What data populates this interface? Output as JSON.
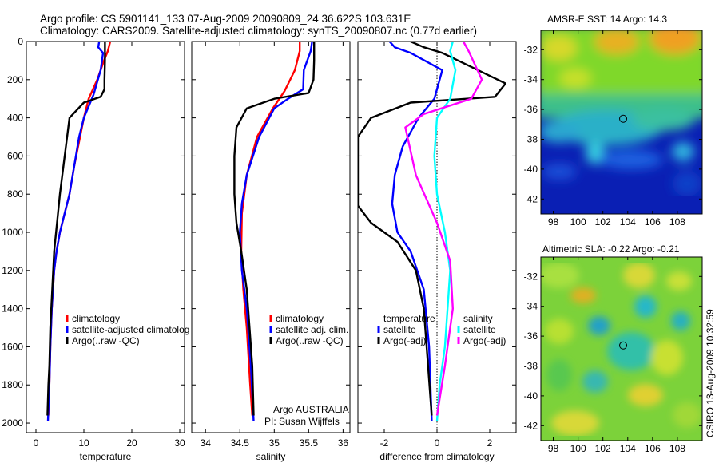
{
  "header": {
    "line1": "Argo profile: CS 5901141_133 07-Aug-2009 20090809_24 36.622S 103.631E",
    "line2": "Climatology: CARS2009. Satellite-adjusted climatology: synTS_20090807.nc (0.77d earlier)"
  },
  "side_text": "CSIRO 13-Aug-2009 10:32:59",
  "colors": {
    "climatology": "#ff0000",
    "satellite": "#0000ff",
    "argo": "#000000",
    "satellite_salinity": "#00ffff",
    "argo_salinity": "#ff00ff"
  },
  "chart_data": [
    {
      "id": "temperature",
      "type": "line",
      "xlabel": "temperature",
      "ylabel": "",
      "xlim": [
        -2,
        31
      ],
      "ylim": [
        2050,
        0
      ],
      "xticks": [
        0,
        10,
        20,
        30
      ],
      "yticks": [
        0,
        200,
        400,
        600,
        800,
        1000,
        1200,
        1400,
        1600,
        1800,
        2000
      ],
      "legend_position": "lower-center",
      "legend": [
        "climatology",
        "satellite-adjusted climatolog",
        "Argo(..raw -QC)"
      ],
      "series": [
        {
          "name": "climatology",
          "color": "#ff0000",
          "x": [
            15.5,
            15.0,
            14.2,
            12.8,
            11.0,
            10.0,
            9.2,
            8.0,
            7.0,
            6.0,
            5.0,
            4.3,
            3.8,
            3.3,
            3.0,
            2.8,
            2.6
          ],
          "y": [
            0,
            50,
            100,
            200,
            300,
            400,
            500,
            650,
            800,
            900,
            1000,
            1100,
            1200,
            1400,
            1600,
            1800,
            1960
          ]
        },
        {
          "name": "satellite-adjusted climatolog",
          "color": "#0000ff",
          "x": [
            13.2,
            13.0,
            14.0,
            13.5,
            12.0,
            10.0,
            9.0,
            8.0,
            7.0,
            6.0,
            5.0,
            4.3,
            3.8,
            3.3,
            3.0,
            2.8,
            2.5
          ],
          "y": [
            0,
            30,
            60,
            150,
            280,
            400,
            500,
            650,
            800,
            900,
            1000,
            1100,
            1200,
            1400,
            1600,
            1800,
            1990
          ]
        },
        {
          "name": "Argo(..raw -QC)",
          "color": "#000000",
          "x": [
            14.4,
            14.4,
            14.3,
            14.3,
            13.5,
            10.0,
            7.0,
            6.0,
            5.0,
            4.4,
            3.8,
            3.4,
            3.0,
            2.8,
            2.6,
            2.4
          ],
          "y": [
            0,
            100,
            200,
            250,
            290,
            320,
            400,
            600,
            800,
            950,
            1100,
            1300,
            1500,
            1700,
            1800,
            1960
          ]
        }
      ]
    },
    {
      "id": "salinity",
      "type": "line",
      "xlabel": "salinity",
      "ylabel": "",
      "xlim": [
        33.8,
        36.1
      ],
      "ylim": [
        2050,
        0
      ],
      "xticks": [
        34,
        34.5,
        35,
        35.5,
        36
      ],
      "xtick_labels": [
        "34",
        "34.5",
        "35",
        "35.5",
        "36"
      ],
      "legend_position": "lower-center",
      "legend": [
        "climatology",
        "satellite adj. clim.",
        "Argo(..raw -QC)"
      ],
      "series": [
        {
          "name": "climatology",
          "color": "#ff0000",
          "x": [
            35.37,
            35.37,
            35.3,
            35.15,
            34.98,
            34.75,
            34.6,
            34.53,
            34.52,
            34.55,
            34.6,
            34.65,
            34.68
          ],
          "y": [
            0,
            50,
            150,
            260,
            350,
            500,
            700,
            900,
            1100,
            1300,
            1500,
            1800,
            1960
          ]
        },
        {
          "name": "satellite adj. clim.",
          "color": "#0000ff",
          "x": [
            35.55,
            35.53,
            35.43,
            35.42,
            35.2,
            35.0,
            34.78,
            34.6,
            34.53,
            34.5,
            34.53,
            34.6,
            34.66,
            34.7
          ],
          "y": [
            0,
            50,
            150,
            250,
            300,
            350,
            500,
            700,
            850,
            1000,
            1200,
            1400,
            1700,
            1990
          ]
        },
        {
          "name": "Argo(..raw -QC)",
          "color": "#000000",
          "x": [
            35.58,
            35.58,
            35.57,
            35.5,
            35.0,
            34.6,
            34.45,
            34.42,
            34.42,
            34.45,
            34.52,
            34.6,
            34.68,
            34.7
          ],
          "y": [
            0,
            100,
            200,
            270,
            300,
            350,
            450,
            600,
            800,
            950,
            1100,
            1300,
            1700,
            1960
          ]
        }
      ]
    },
    {
      "id": "difference",
      "type": "line",
      "xlabel": "difference from climatology",
      "ylabel": "",
      "xlim": [
        -3,
        3
      ],
      "ylim": [
        2050,
        0
      ],
      "xticks": [
        -2,
        0,
        2
      ],
      "xtick_labels": [
        "-2",
        "0",
        "2"
      ],
      "zero_line": true,
      "legend_position": "lower-center",
      "legend_groups": [
        {
          "title": "temperature",
          "items": [
            "satellite",
            "Argo(-adj)"
          ]
        },
        {
          "title": "salinity",
          "items": [
            "satellite",
            "Argo(-adj)"
          ]
        }
      ],
      "series": [
        {
          "name": "satellite",
          "group": "temperature",
          "color": "#0000ff",
          "x": [
            -1.8,
            -1.6,
            -1.0,
            0.2,
            -0.1,
            -0.7,
            -1.3,
            -1.6,
            -1.7,
            -1.5,
            -1.0,
            -0.5,
            -0.3,
            -0.2
          ],
          "y": [
            0,
            30,
            60,
            150,
            300,
            400,
            550,
            700,
            850,
            1000,
            1100,
            1300,
            1600,
            1990
          ]
        },
        {
          "name": "Argo(-adj)",
          "group": "temperature",
          "color": "#000000",
          "x": [
            -1.0,
            -0.5,
            0.2,
            2.6,
            2.2,
            -1.0,
            -2.5,
            -3.0,
            -3.0,
            -2.5,
            -1.5,
            -0.8,
            -0.5,
            -0.2
          ],
          "y": [
            0,
            30,
            60,
            220,
            290,
            320,
            400,
            500,
            860,
            950,
            1050,
            1200,
            1400,
            1960
          ]
        },
        {
          "name": "satellite",
          "group": "salinity",
          "color": "#00ffff",
          "x": [
            0.6,
            0.5,
            0.7,
            0.5,
            0.0,
            -0.1,
            0.0,
            0.3,
            0.5,
            0.4,
            0.3,
            0.1,
            0.0
          ],
          "y": [
            0,
            50,
            150,
            300,
            400,
            600,
            800,
            1000,
            1200,
            1400,
            1600,
            1800,
            1990
          ]
        },
        {
          "name": "Argo(-adj)",
          "group": "salinity",
          "color": "#ff00ff",
          "x": [
            1.0,
            1.2,
            1.7,
            1.3,
            -0.5,
            -1.2,
            -0.8,
            0.0,
            0.5,
            0.6,
            0.3,
            0.0
          ],
          "y": [
            0,
            50,
            200,
            300,
            380,
            450,
            700,
            950,
            1150,
            1400,
            1700,
            1960
          ]
        }
      ]
    },
    {
      "id": "sst_map",
      "type": "heatmap",
      "title": "AMSR-E SST: 14 Argo: 14.3",
      "xlim": [
        97,
        110
      ],
      "ylim": [
        -43,
        -30.7
      ],
      "xticks": [
        98,
        100,
        102,
        104,
        106,
        108
      ],
      "yticks": [
        -42,
        -40,
        -38,
        -36,
        -34,
        -32
      ],
      "marker": {
        "lon": 103.631,
        "lat": -36.622
      }
    },
    {
      "id": "sla_map",
      "type": "heatmap",
      "title": "Altimetric SLA: -0.22 Argo: -0.21",
      "xlim": [
        97,
        110
      ],
      "ylim": [
        -43,
        -30.7
      ],
      "xticks": [
        98,
        100,
        102,
        104,
        106,
        108
      ],
      "yticks": [
        -42,
        -40,
        -38,
        -36,
        -34,
        -32
      ],
      "marker": {
        "lon": 103.631,
        "lat": -36.622
      }
    }
  ],
  "annotations": {
    "float_country": "Argo AUSTRALIA",
    "float_pi": "PI: Susan Wijffels"
  }
}
